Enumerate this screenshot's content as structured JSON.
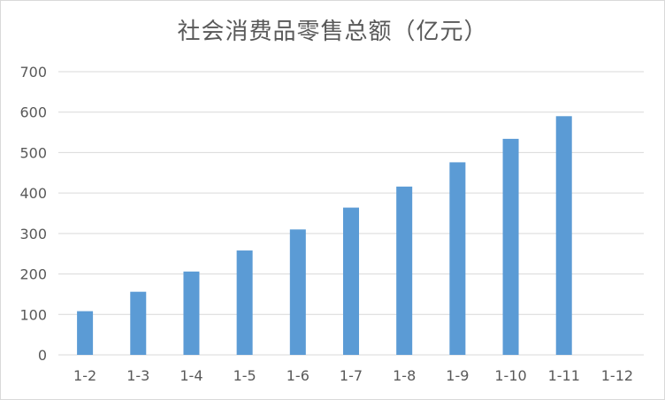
{
  "chart_data": {
    "type": "bar",
    "title": "社会消费品零售总额（亿元）",
    "categories": [
      "1-2",
      "1-3",
      "1-4",
      "1-5",
      "1-6",
      "1-7",
      "1-8",
      "1-9",
      "1-10",
      "1-11",
      "1-12"
    ],
    "values": [
      108,
      156,
      206,
      258,
      310,
      364,
      416,
      476,
      534,
      590,
      null
    ],
    "ylim": [
      0,
      700
    ],
    "yticks": [
      0,
      100,
      200,
      300,
      400,
      500,
      600,
      700
    ],
    "grid": true,
    "legend": "none",
    "bar_color": "#5b9bd5",
    "grid_color": "#d9d9d9"
  }
}
